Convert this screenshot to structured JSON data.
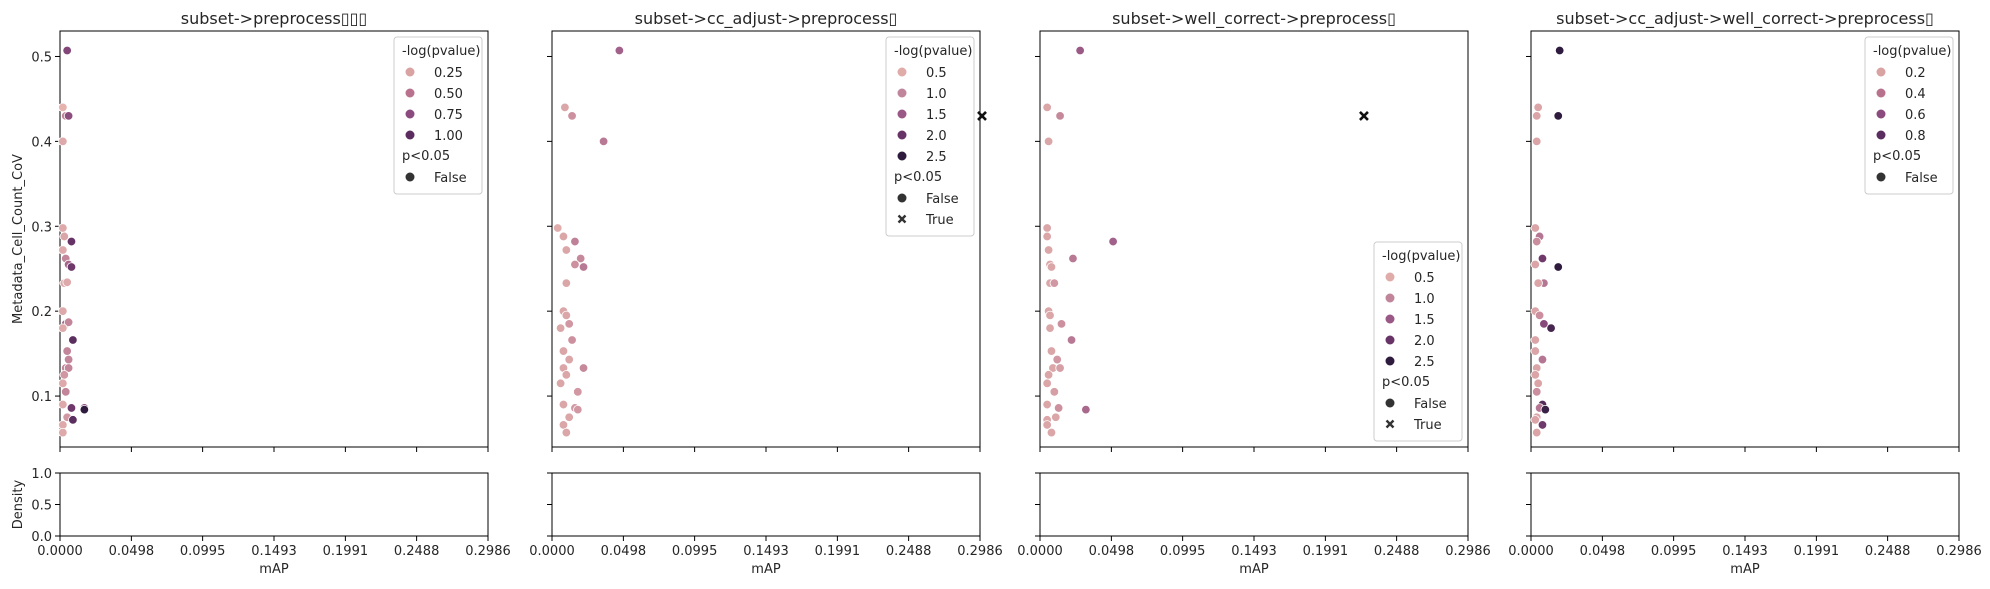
{
  "chart_data": {
    "type": "scatter",
    "ylabel": "Metadata_Cell_Count_CoV",
    "density_ylabel": "Density",
    "xlabel": "mAP",
    "xlim": [
      0,
      0.2986
    ],
    "ylim": [
      0.04,
      0.53
    ],
    "x_ticks": [
      "0.0000",
      "0.0498",
      "0.0995",
      "0.1493",
      "0.1991",
      "0.2488",
      "0.2986"
    ],
    "y_ticks": [
      "0.1",
      "0.2",
      "0.3",
      "0.4",
      "0.5"
    ],
    "density_ticks": [
      "0.0",
      "0.5",
      "1.0"
    ],
    "panels": [
      {
        "title": "subset->preprocess▯▯▯",
        "legend": {
          "position": "top-right",
          "hue_title": "-log(pvalue)",
          "hue_levels": [
            {
              "label": "0.25",
              "color": "#d9a3a3"
            },
            {
              "label": "0.50",
              "color": "#b8728e"
            },
            {
              "label": "0.75",
              "color": "#8c4b7e"
            },
            {
              "label": "1.00",
              "color": "#5b2c5f"
            }
          ],
          "style_title": "p<0.05",
          "style_levels": [
            {
              "label": "False",
              "marker": "circle"
            }
          ]
        },
        "points": [
          [
            0.005,
            0.507,
            0.65
          ],
          [
            0.002,
            0.44,
            0.05
          ],
          [
            0.004,
            0.43,
            0.3
          ],
          [
            0.006,
            0.43,
            0.6
          ],
          [
            0.002,
            0.4,
            0.1
          ],
          [
            0.002,
            0.298,
            0.1
          ],
          [
            0.003,
            0.288,
            0.12
          ],
          [
            0.008,
            0.282,
            0.8
          ],
          [
            0.002,
            0.272,
            0.1
          ],
          [
            0.004,
            0.262,
            0.3
          ],
          [
            0.006,
            0.255,
            0.45
          ],
          [
            0.008,
            0.252,
            0.75
          ],
          [
            0.003,
            0.233,
            0.1
          ],
          [
            0.005,
            0.234,
            0.1
          ],
          [
            0.002,
            0.2,
            0.1
          ],
          [
            0.004,
            0.185,
            0.45
          ],
          [
            0.006,
            0.187,
            0.3
          ],
          [
            0.002,
            0.18,
            0.1
          ],
          [
            0.009,
            0.166,
            0.85
          ],
          [
            0.005,
            0.153,
            0.3
          ],
          [
            0.006,
            0.143,
            0.3
          ],
          [
            0.004,
            0.133,
            0.3
          ],
          [
            0.006,
            0.133,
            0.3
          ],
          [
            0.003,
            0.125,
            0.2
          ],
          [
            0.002,
            0.115,
            0.1
          ],
          [
            0.004,
            0.105,
            0.3
          ],
          [
            0.002,
            0.09,
            0.1
          ],
          [
            0.008,
            0.086,
            0.75
          ],
          [
            0.017,
            0.086,
            0.6
          ],
          [
            0.017,
            0.084,
            1.05
          ],
          [
            0.005,
            0.075,
            0.2
          ],
          [
            0.009,
            0.072,
            0.85
          ],
          [
            0.002,
            0.066,
            0.1
          ],
          [
            0.002,
            0.057,
            0.1
          ]
        ]
      },
      {
        "title": "subset->cc_adjust->preprocess▯",
        "legend": {
          "position": "top-right",
          "hue_title": "-log(pvalue)",
          "hue_levels": [
            {
              "label": "0.5",
              "color": "#e0acaa"
            },
            {
              "label": "1.0",
              "color": "#c1859b"
            },
            {
              "label": "1.5",
              "color": "#9a5886"
            },
            {
              "label": "2.0",
              "color": "#683468"
            },
            {
              "label": "2.5",
              "color": "#2e1b3e"
            }
          ],
          "style_title": "p<0.05",
          "style_levels": [
            {
              "label": "False",
              "marker": "circle"
            },
            {
              "label": "True",
              "marker": "x"
            }
          ]
        },
        "points": [
          [
            0.047,
            0.507,
            1.2
          ],
          [
            0.3,
            0.43,
            2.7,
            "x"
          ],
          [
            0.009,
            0.44,
            0.3
          ],
          [
            0.014,
            0.43,
            0.6
          ],
          [
            0.036,
            0.4,
            0.9
          ],
          [
            0.004,
            0.298,
            0.2
          ],
          [
            0.008,
            0.288,
            0.3
          ],
          [
            0.016,
            0.282,
            0.8
          ],
          [
            0.01,
            0.272,
            0.3
          ],
          [
            0.02,
            0.262,
            0.7
          ],
          [
            0.016,
            0.255,
            0.6
          ],
          [
            0.022,
            0.252,
            0.9
          ],
          [
            0.01,
            0.233,
            0.3
          ],
          [
            0.008,
            0.2,
            0.3
          ],
          [
            0.01,
            0.195,
            0.3
          ],
          [
            0.012,
            0.185,
            0.5
          ],
          [
            0.006,
            0.18,
            0.3
          ],
          [
            0.014,
            0.166,
            0.6
          ],
          [
            0.008,
            0.153,
            0.3
          ],
          [
            0.012,
            0.143,
            0.3
          ],
          [
            0.008,
            0.133,
            0.3
          ],
          [
            0.022,
            0.133,
            0.7
          ],
          [
            0.01,
            0.125,
            0.3
          ],
          [
            0.006,
            0.115,
            0.3
          ],
          [
            0.018,
            0.105,
            0.5
          ],
          [
            0.008,
            0.09,
            0.3
          ],
          [
            0.016,
            0.086,
            0.5
          ],
          [
            0.018,
            0.084,
            0.5
          ],
          [
            0.012,
            0.075,
            0.3
          ],
          [
            0.008,
            0.066,
            0.3
          ],
          [
            0.01,
            0.057,
            0.3
          ]
        ]
      },
      {
        "title": "subset->well_correct->preprocess▯",
        "legend": {
          "position": "lower-right",
          "hue_title": "-log(pvalue)",
          "hue_levels": [
            {
              "label": "0.5",
              "color": "#e0acaa"
            },
            {
              "label": "1.0",
              "color": "#c1859b"
            },
            {
              "label": "1.5",
              "color": "#9a5886"
            },
            {
              "label": "2.0",
              "color": "#683468"
            },
            {
              "label": "2.5",
              "color": "#2e1b3e"
            }
          ],
          "style_title": "p<0.05",
          "style_levels": [
            {
              "label": "False",
              "marker": "circle"
            },
            {
              "label": "True",
              "marker": "x"
            }
          ]
        },
        "points": [
          [
            0.028,
            0.507,
            1.3
          ],
          [
            0.226,
            0.43,
            2.7,
            "x"
          ],
          [
            0.005,
            0.44,
            0.3
          ],
          [
            0.014,
            0.43,
            0.7
          ],
          [
            0.006,
            0.4,
            0.3
          ],
          [
            0.005,
            0.298,
            0.3
          ],
          [
            0.005,
            0.288,
            0.3
          ],
          [
            0.051,
            0.282,
            1.2
          ],
          [
            0.006,
            0.272,
            0.3
          ],
          [
            0.023,
            0.262,
            0.9
          ],
          [
            0.007,
            0.255,
            0.3
          ],
          [
            0.008,
            0.252,
            0.3
          ],
          [
            0.007,
            0.233,
            0.3
          ],
          [
            0.01,
            0.233,
            0.5
          ],
          [
            0.006,
            0.2,
            0.3
          ],
          [
            0.007,
            0.195,
            0.3
          ],
          [
            0.015,
            0.185,
            0.6
          ],
          [
            0.007,
            0.18,
            0.3
          ],
          [
            0.022,
            0.166,
            0.9
          ],
          [
            0.008,
            0.153,
            0.3
          ],
          [
            0.012,
            0.143,
            0.5
          ],
          [
            0.009,
            0.133,
            0.3
          ],
          [
            0.014,
            0.133,
            0.4
          ],
          [
            0.006,
            0.125,
            0.3
          ],
          [
            0.005,
            0.115,
            0.3
          ],
          [
            0.01,
            0.105,
            0.4
          ],
          [
            0.005,
            0.09,
            0.3
          ],
          [
            0.013,
            0.086,
            0.6
          ],
          [
            0.032,
            0.084,
            1.1
          ],
          [
            0.011,
            0.075,
            0.3
          ],
          [
            0.005,
            0.072,
            0.3
          ],
          [
            0.005,
            0.066,
            0.3
          ],
          [
            0.008,
            0.057,
            0.3
          ]
        ]
      },
      {
        "title": "subset->cc_adjust->well_correct->preprocess▯",
        "legend": {
          "position": "top-right",
          "hue_title": "-log(pvalue)",
          "hue_levels": [
            {
              "label": "0.2",
              "color": "#d9a3a3"
            },
            {
              "label": "0.4",
              "color": "#b8728e"
            },
            {
              "label": "0.6",
              "color": "#8c4b7e"
            },
            {
              "label": "0.8",
              "color": "#5b2c5f"
            }
          ],
          "style_title": "p<0.05",
          "style_levels": [
            {
              "label": "False",
              "marker": "circle"
            }
          ]
        },
        "points": [
          [
            0.02,
            0.507,
            1.0
          ],
          [
            0.019,
            0.43,
            1.0
          ],
          [
            0.005,
            0.44,
            0.1
          ],
          [
            0.004,
            0.43,
            0.1
          ],
          [
            0.004,
            0.4,
            0.1
          ],
          [
            0.003,
            0.298,
            0.1
          ],
          [
            0.006,
            0.288,
            0.3
          ],
          [
            0.004,
            0.282,
            0.2
          ],
          [
            0.008,
            0.262,
            0.6
          ],
          [
            0.019,
            0.252,
            0.95
          ],
          [
            0.003,
            0.255,
            0.1
          ],
          [
            0.009,
            0.233,
            0.3
          ],
          [
            0.005,
            0.233,
            0.1
          ],
          [
            0.003,
            0.2,
            0.1
          ],
          [
            0.006,
            0.195,
            0.2
          ],
          [
            0.009,
            0.185,
            0.5
          ],
          [
            0.014,
            0.18,
            0.75
          ],
          [
            0.003,
            0.166,
            0.1
          ],
          [
            0.003,
            0.153,
            0.1
          ],
          [
            0.008,
            0.143,
            0.3
          ],
          [
            0.004,
            0.133,
            0.1
          ],
          [
            0.003,
            0.125,
            0.1
          ],
          [
            0.005,
            0.115,
            0.1
          ],
          [
            0.004,
            0.105,
            0.2
          ],
          [
            0.008,
            0.09,
            0.7
          ],
          [
            0.006,
            0.086,
            0.3
          ],
          [
            0.01,
            0.084,
            0.8
          ],
          [
            0.004,
            0.075,
            0.1
          ],
          [
            0.008,
            0.066,
            0.6
          ],
          [
            0.003,
            0.072,
            0.1
          ],
          [
            0.004,
            0.057,
            0.1
          ]
        ]
      }
    ]
  }
}
